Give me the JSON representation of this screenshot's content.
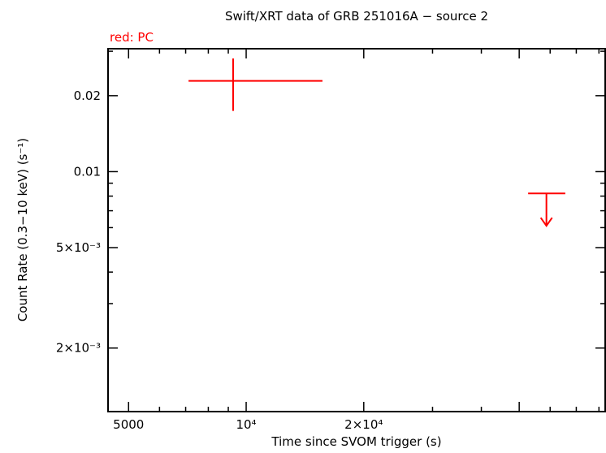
{
  "title": "Swift/XRT data of GRB 251016A − source 2",
  "legend": {
    "label": "red: PC",
    "color": "#ff0000"
  },
  "chart_data": {
    "type": "scatter",
    "title": "Swift/XRT data of GRB 251016A − source 2",
    "xlabel": "Time since SVOM trigger (s)",
    "ylabel": "Count Rate (0.3−10 keV) (s⁻¹)",
    "xscale": "log",
    "yscale": "log",
    "xlim": [
      4430,
      83000
    ],
    "ylim": [
      0.00112,
      0.0307
    ],
    "grid": false,
    "legend_position": "top-left",
    "x_ticks_major": [
      {
        "value": 5000,
        "label": "5000"
      },
      {
        "value": 10000,
        "label": "10⁴"
      },
      {
        "value": 20000,
        "label": "2×10⁴"
      },
      {
        "value": 50000,
        "label": ""
      }
    ],
    "x_ticks_minor": [
      6000,
      7000,
      8000,
      9000,
      30000,
      40000,
      60000,
      70000,
      80000
    ],
    "y_ticks_major": [
      {
        "value": 0.02,
        "label": "0.02"
      },
      {
        "value": 0.01,
        "label": "0.01"
      },
      {
        "value": 0.005,
        "label": "5×10⁻³"
      },
      {
        "value": 0.002,
        "label": "2×10⁻³"
      }
    ],
    "y_ticks_minor": [
      0.003,
      0.004,
      0.006,
      0.007,
      0.008,
      0.009,
      0.03
    ],
    "series": [
      {
        "name": "PC",
        "color": "#ff0000",
        "points": [
          {
            "t": 9260,
            "t_lo": 7120,
            "t_hi": 15680,
            "rate": 0.0229,
            "rate_lo": 0.0174,
            "rate_hi": 0.0281
          }
        ],
        "upper_limits": [
          {
            "t": 58700,
            "t_lo": 52700,
            "t_hi": 65600,
            "rate": 0.0082,
            "arrow_tip": 0.0061
          }
        ]
      }
    ]
  }
}
